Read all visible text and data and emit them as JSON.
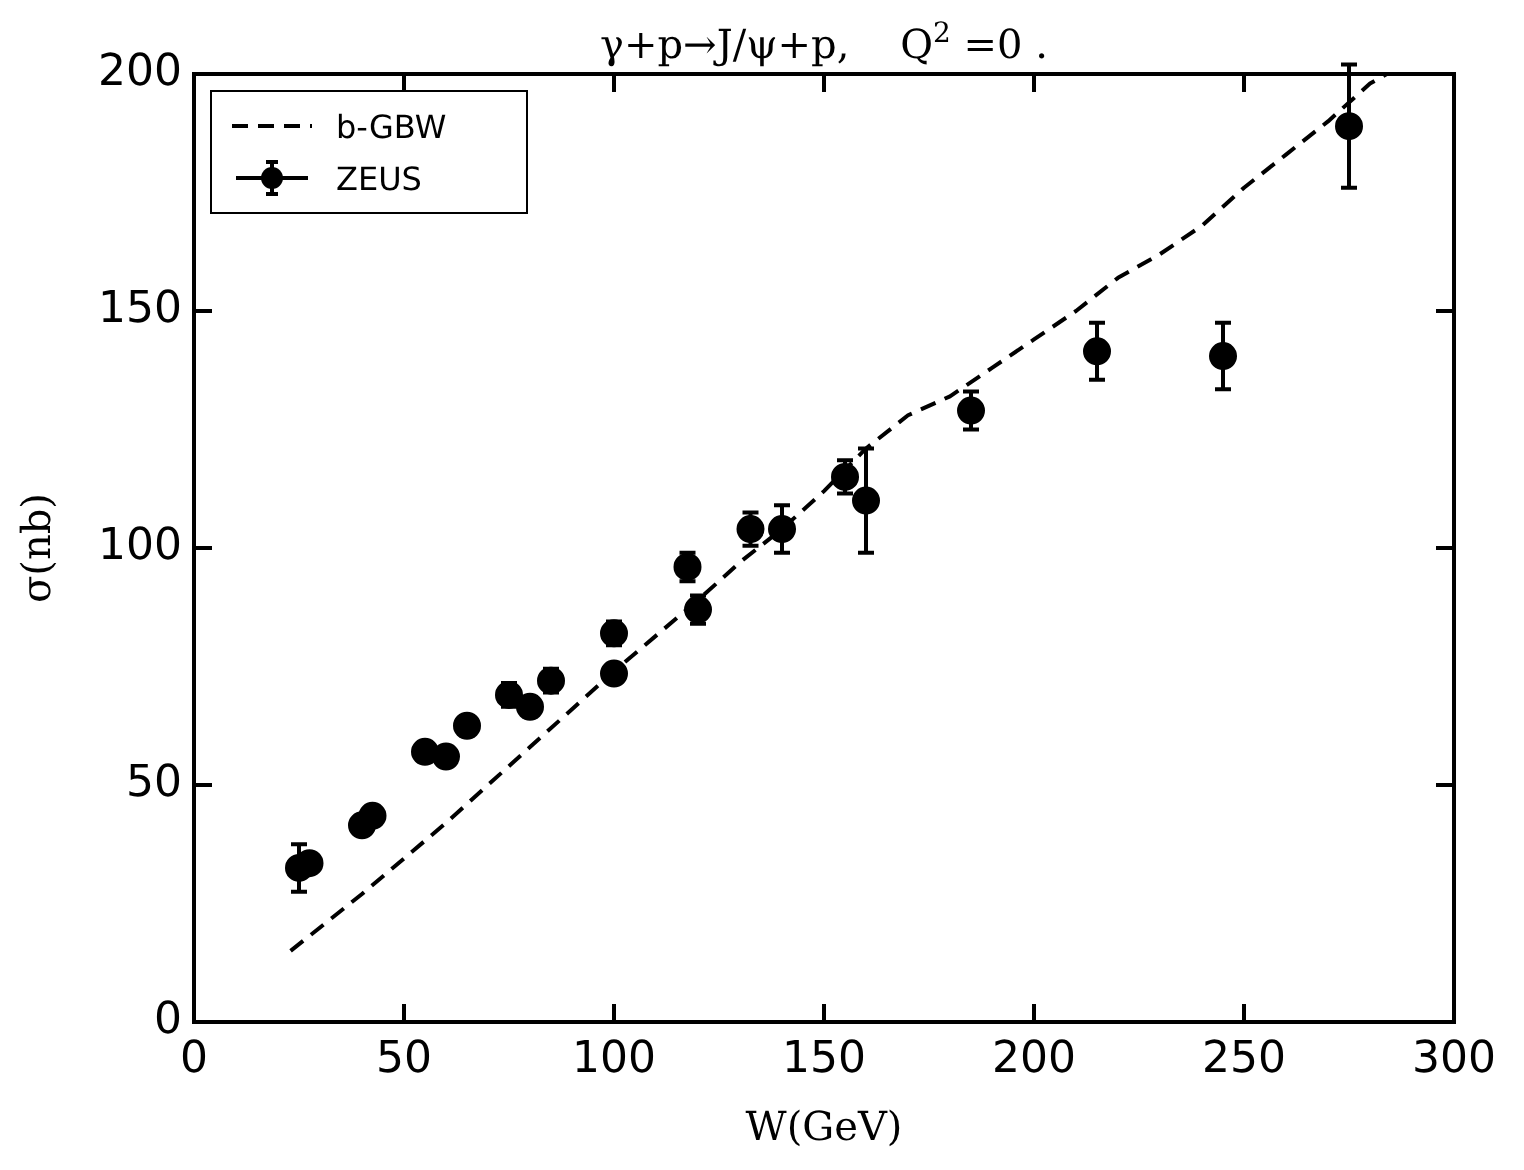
{
  "chart_data": {
    "type": "scatter",
    "title": "γ+p→J/ψ+p,    Q$^{2}$ =0 .",
    "xlabel": "W(GeV)",
    "ylabel": "σ(nb)",
    "xlim": [
      0,
      300
    ],
    "xticks": [
      0,
      50,
      100,
      150,
      200,
      250,
      300
    ],
    "ylim": [
      0,
      200
    ],
    "yticks": [
      0,
      50,
      100,
      150,
      200
    ],
    "legend": "top left",
    "series": [
      {
        "name": "b-GBW",
        "type": "line",
        "line_style": "dashed",
        "marker": "none",
        "color": "#000000",
        "x": [
          23,
          40,
          60,
          80,
          100,
          120,
          130,
          140,
          150,
          160,
          170,
          180,
          190,
          200,
          210,
          220,
          230,
          240,
          250,
          260,
          270,
          280,
          284
        ],
        "values": [
          15,
          27,
          42,
          58,
          74,
          89,
          97,
          104,
          112,
          121,
          128,
          132,
          138,
          144,
          150,
          157,
          162,
          168,
          176,
          183,
          190,
          198,
          200
        ]
      },
      {
        "name": "ZEUS",
        "marker": "circle",
        "color": "#000000",
        "x": [
          25,
          27.5,
          40,
          42.5,
          55,
          60,
          65,
          75,
          80,
          85,
          100,
          100,
          117.5,
          120,
          132.5,
          140,
          155,
          160,
          185,
          215,
          245,
          275
        ],
        "values": [
          32.5,
          33.5,
          41.5,
          43.5,
          57,
          56,
          62.5,
          69,
          66.5,
          72,
          82,
          73.5,
          96,
          87,
          104,
          104,
          115,
          110,
          129,
          141.5,
          140.5,
          189
        ],
        "errors": [
          5,
          1,
          null,
          null,
          null,
          null,
          2,
          2.5,
          2,
          2.5,
          2.5,
          null,
          3,
          3,
          3.5,
          5,
          3.5,
          11,
          4,
          6,
          7,
          13
        ]
      }
    ]
  }
}
